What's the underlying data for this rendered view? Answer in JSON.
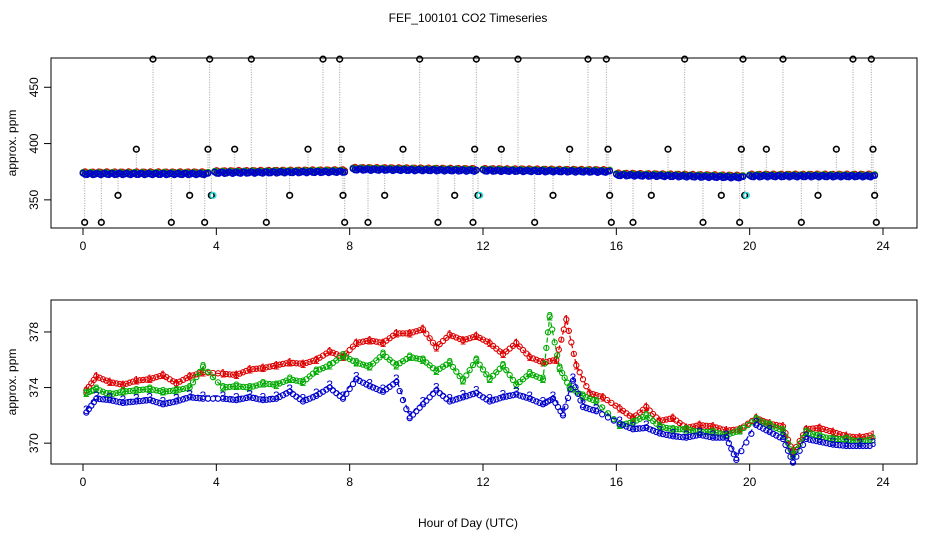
{
  "title": "FEF_100101  CO2 Timeseries",
  "xlabel": "Hour of Day (UTC)",
  "colors": {
    "series1": "#dd0000",
    "series2": "#00aa00",
    "series3": "#0000cc",
    "reference": "#33dddd",
    "calibration": "#000000",
    "connector": "#a0a0a0"
  },
  "chart_data": [
    {
      "type": "scatter",
      "ylabel": "approx. ppm",
      "xlim": [
        0,
        24
      ],
      "ylim": [
        325,
        476
      ],
      "xticks": [
        "0",
        "4",
        "8",
        "12",
        "16",
        "20",
        "24"
      ],
      "yticks": [
        "350",
        "400",
        "450"
      ],
      "segments": [
        [
          0.0,
          3.75
        ],
        [
          3.95,
          7.85
        ],
        [
          8.1,
          11.8
        ],
        [
          12.0,
          15.8
        ],
        [
          16.0,
          19.8
        ],
        [
          20.0,
          23.75
        ]
      ],
      "segment_levels": [
        [
          373,
          373
        ],
        [
          374,
          375
        ],
        [
          377,
          376
        ],
        [
          376,
          375
        ],
        [
          372,
          370
        ],
        [
          371,
          371
        ]
      ],
      "calibration_x": [
        0.05,
        0.55,
        1.05,
        1.6,
        2.1,
        2.65,
        3.2,
        3.65,
        3.75,
        3.8,
        3.85,
        4.55,
        5.05,
        5.5,
        6.2,
        6.75,
        7.2,
        7.7,
        7.75,
        7.8,
        7.85,
        8.55,
        9.05,
        9.6,
        10.1,
        10.65,
        11.15,
        11.7,
        11.75,
        11.8,
        11.85,
        12.55,
        13.05,
        13.55,
        14.1,
        14.6,
        15.15,
        15.7,
        15.75,
        15.8,
        15.85,
        16.5,
        17.05,
        17.55,
        18.05,
        18.6,
        19.15,
        19.7,
        19.75,
        19.8,
        19.85,
        20.5,
        21.0,
        21.55,
        22.05,
        22.6,
        23.1,
        23.65,
        23.7,
        23.75,
        23.8
      ],
      "calibration_y": [
        330,
        330,
        354,
        395,
        475,
        330,
        354,
        330,
        395,
        475,
        354,
        395,
        475,
        330,
        354,
        395,
        475,
        475,
        395,
        354,
        330,
        330,
        354,
        395,
        475,
        330,
        354,
        330,
        395,
        475,
        354,
        395,
        475,
        330,
        354,
        395,
        475,
        475,
        395,
        354,
        330,
        330,
        354,
        395,
        475,
        330,
        354,
        330,
        395,
        475,
        354,
        395,
        475,
        330,
        354,
        395,
        475,
        475,
        395,
        354,
        330
      ],
      "reference_x": [
        3.9,
        11.9,
        19.9
      ],
      "reference_y": [
        354,
        354,
        354
      ]
    },
    {
      "type": "line",
      "ylabel": "approx. ppm",
      "xlim": [
        0,
        24
      ],
      "ylim": [
        368.5,
        380.3
      ],
      "xticks": [
        "0",
        "4",
        "8",
        "12",
        "16",
        "20",
        "24"
      ],
      "yticks": [
        "370",
        "374",
        "378"
      ],
      "series": [
        {
          "marker": "1",
          "x": [
            0.1,
            0.4,
            0.8,
            1.2,
            1.6,
            2.0,
            2.4,
            2.8,
            3.2,
            3.6,
            4.2,
            4.6,
            5.0,
            5.4,
            5.8,
            6.2,
            6.6,
            7.0,
            7.4,
            7.8,
            8.2,
            8.6,
            9.0,
            9.4,
            9.8,
            10.2,
            10.6,
            11.0,
            11.4,
            11.8,
            12.2,
            12.6,
            13.0,
            13.4,
            13.8,
            14.2,
            14.5,
            14.8,
            15.2,
            15.6,
            16.1,
            16.5,
            16.9,
            17.3,
            17.7,
            18.1,
            18.5,
            18.9,
            19.3,
            19.7,
            20.2,
            20.6,
            21.0,
            21.3,
            21.7,
            22.1,
            22.5,
            22.9,
            23.3,
            23.7
          ],
          "y": [
            373.8,
            374.8,
            374.4,
            374.2,
            374.5,
            374.6,
            374.9,
            374.3,
            374.8,
            375.1,
            375.0,
            374.9,
            375.3,
            375.4,
            375.6,
            375.8,
            375.7,
            376.0,
            376.6,
            376.2,
            377.2,
            377.4,
            377.2,
            377.9,
            377.9,
            378.2,
            376.9,
            377.8,
            377.4,
            377.7,
            377.2,
            376.4,
            377.2,
            376.2,
            375.8,
            376.0,
            378.9,
            375.6,
            373.6,
            373.3,
            372.5,
            371.8,
            372.6,
            371.6,
            371.8,
            371.1,
            371.3,
            371.2,
            370.9,
            371.0,
            371.8,
            371.4,
            371.2,
            369.3,
            371.0,
            371.1,
            370.8,
            370.5,
            370.4,
            370.6
          ]
        },
        {
          "marker": "2",
          "x": [
            0.1,
            0.4,
            0.8,
            1.2,
            1.6,
            2.0,
            2.4,
            2.8,
            3.2,
            3.6,
            4.2,
            4.6,
            5.0,
            5.4,
            5.8,
            6.2,
            6.6,
            7.0,
            7.4,
            7.8,
            8.2,
            8.6,
            9.0,
            9.4,
            9.8,
            10.2,
            10.6,
            11.0,
            11.4,
            11.8,
            12.2,
            12.6,
            13.0,
            13.4,
            13.8,
            14.0,
            14.3,
            14.6,
            15.0,
            15.4,
            16.1,
            16.5,
            16.9,
            17.3,
            17.7,
            18.1,
            18.5,
            18.9,
            19.3,
            19.7,
            20.2,
            20.6,
            21.0,
            21.3,
            21.7,
            22.1,
            22.5,
            22.9,
            23.3,
            23.7
          ],
          "y": [
            373.6,
            373.9,
            373.5,
            373.7,
            373.8,
            373.9,
            373.7,
            373.8,
            374.0,
            375.5,
            374.0,
            374.1,
            374.0,
            374.3,
            374.2,
            374.6,
            374.4,
            375.2,
            375.6,
            376.3,
            375.8,
            375.5,
            376.4,
            375.6,
            376.2,
            376.0,
            375.2,
            375.8,
            374.5,
            376.0,
            374.6,
            375.6,
            374.2,
            375.0,
            374.6,
            379.1,
            375.4,
            374.0,
            373.4,
            373.0,
            371.3,
            371.5,
            372.0,
            371.2,
            371.0,
            371.0,
            370.8,
            370.8,
            370.6,
            370.9,
            371.7,
            371.3,
            370.9,
            369.1,
            370.8,
            370.5,
            370.3,
            370.3,
            370.1,
            370.3
          ]
        },
        {
          "marker": "3",
          "x": [
            0.1,
            0.4,
            0.8,
            1.2,
            1.6,
            2.0,
            2.4,
            2.8,
            3.2,
            3.6,
            4.2,
            4.6,
            5.0,
            5.4,
            5.8,
            6.2,
            6.6,
            7.0,
            7.4,
            7.8,
            8.2,
            8.6,
            9.0,
            9.4,
            9.8,
            10.2,
            10.6,
            11.0,
            11.4,
            11.8,
            12.2,
            12.6,
            13.0,
            13.4,
            13.8,
            14.1,
            14.4,
            14.7,
            15.0,
            15.4,
            16.1,
            16.5,
            16.9,
            17.3,
            17.7,
            18.1,
            18.5,
            18.9,
            19.3,
            19.6,
            20.2,
            20.6,
            21.0,
            21.3,
            21.7,
            22.1,
            22.5,
            22.9,
            23.3,
            23.7
          ],
          "y": [
            372.4,
            373.4,
            373.3,
            373.1,
            373.2,
            373.3,
            373.0,
            373.2,
            373.5,
            373.4,
            373.4,
            373.3,
            373.5,
            373.3,
            373.4,
            373.9,
            373.2,
            373.6,
            374.2,
            373.4,
            374.8,
            374.3,
            373.9,
            374.6,
            372.0,
            373.0,
            374.0,
            373.2,
            373.5,
            373.8,
            373.2,
            373.5,
            373.7,
            373.4,
            373.0,
            373.4,
            372.2,
            374.7,
            372.8,
            372.5,
            371.6,
            371.2,
            371.3,
            370.9,
            370.7,
            370.6,
            370.8,
            370.6,
            370.6,
            369.0,
            371.5,
            371.0,
            370.5,
            368.8,
            370.5,
            370.3,
            370.1,
            370.0,
            370.0,
            370.0
          ]
        }
      ]
    }
  ]
}
